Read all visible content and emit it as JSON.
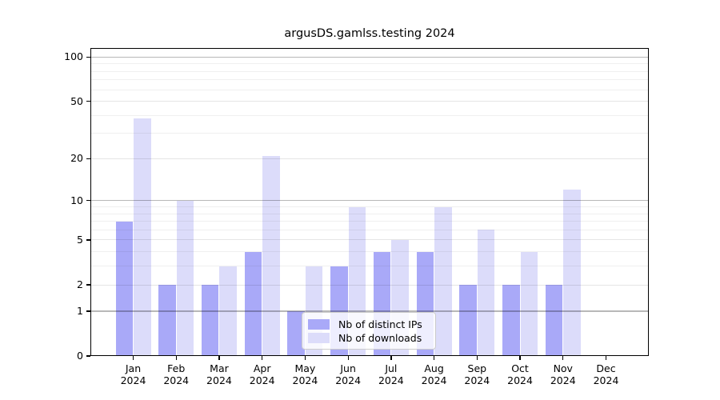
{
  "title": "argusDS.gamlss.testing 2024",
  "chart_data": {
    "type": "bar",
    "title": "argusDS.gamlss.testing 2024",
    "categories": [
      "Jan 2024",
      "Feb 2024",
      "Mar 2024",
      "Apr 2024",
      "May 2024",
      "Jun 2024",
      "Jul 2024",
      "Aug 2024",
      "Sep 2024",
      "Oct 2024",
      "Nov 2024",
      "Dec 2024"
    ],
    "months": [
      "Jan",
      "Feb",
      "Mar",
      "Apr",
      "May",
      "Jun",
      "Jul",
      "Aug",
      "Sep",
      "Oct",
      "Nov",
      "Dec"
    ],
    "year": "2024",
    "series": [
      {
        "name": "Nb of distinct IPs",
        "color": "#a9a9f8",
        "values": [
          7,
          2,
          2,
          4,
          1,
          3,
          4,
          4,
          2,
          2,
          2,
          0
        ]
      },
      {
        "name": "Nb of downloads",
        "color": "#dcdcfa",
        "values": [
          38,
          10,
          3,
          21,
          3,
          9,
          5,
          9,
          6,
          4,
          12,
          0
        ]
      }
    ],
    "xlabel": "",
    "ylabel": "",
    "y_axis": {
      "scale": "log10(x+1)",
      "ticks": [
        0,
        1,
        2,
        5,
        10,
        20,
        50,
        100
      ],
      "ylim": [
        0,
        115
      ]
    },
    "grid": true,
    "legend_position": "lower-center"
  }
}
